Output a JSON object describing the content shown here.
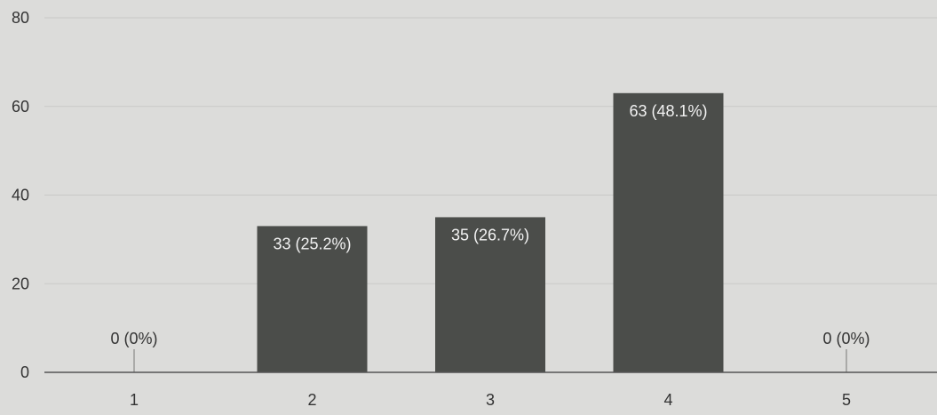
{
  "chart_data": {
    "type": "bar",
    "categories": [
      "1",
      "2",
      "3",
      "4",
      "5"
    ],
    "values": [
      0,
      33,
      35,
      63,
      0
    ],
    "data_labels": [
      "0 (0%)",
      "33 (25.2%)",
      "35 (26.7%)",
      "63 (48.1%)",
      "0 (0%)"
    ],
    "y_ticks": [
      "0",
      "20",
      "40",
      "60",
      "80"
    ],
    "ylim": [
      0,
      80
    ],
    "grid": true,
    "colors": {
      "bar": "#4b4d4a",
      "grid": "#c9c9c7",
      "axis": "#555555"
    }
  }
}
